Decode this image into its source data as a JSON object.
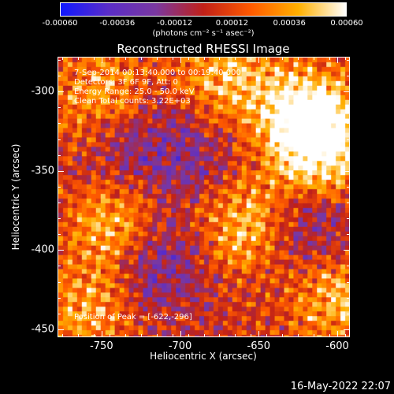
{
  "colorbar": {
    "tick_labels": [
      "-0.00060",
      "-0.00036",
      "-0.00012",
      "0.00012",
      "0.00036",
      "0.00060"
    ],
    "units_label": "(photons cm⁻² s⁻¹ asec⁻²)",
    "range": [
      -0.0006,
      0.0006
    ]
  },
  "annotations": {
    "time": "7-Sep-2014 00:13:40.000 to 00:19:40.000",
    "detectors": "Detectors: 3F 6F 9F, Att: 0",
    "energy": "Energy Range: 25.0 - 50.0 keV",
    "clean": "Clean    Total counts: 3.22E+03",
    "peak": "Position of Peak = [-622,-296]"
  },
  "footer": {
    "date": "16-May-2022 22:07"
  },
  "chart_data": {
    "type": "heatmap",
    "title": "Reconstructed RHESSI Image",
    "xlabel": "Heliocentric X (arcsec)",
    "ylabel": "Heliocentric Y (arcsec)",
    "xlim": [
      -778,
      -592
    ],
    "ylim": [
      -455,
      -278
    ],
    "x_ticks": [
      -750,
      -700,
      -650,
      -600
    ],
    "x_tick_labels": [
      "-750",
      "-700",
      "-650",
      "-600"
    ],
    "y_ticks": [
      -450,
      -400,
      -350,
      -300
    ],
    "y_tick_labels": [
      "-450",
      "-400",
      "-350",
      "-300"
    ],
    "colormap": [
      "#1018ff",
      "#5a2dc8",
      "#7a38a0",
      "#c02018",
      "#ff5a00",
      "#ffb000",
      "#ffffff"
    ],
    "peak_position": [
      -622,
      -296
    ],
    "bright_regions": [
      {
        "x": -620,
        "y": -315,
        "level": 0.95
      },
      {
        "x": -610,
        "y": -335,
        "level": 0.85
      },
      {
        "x": -750,
        "y": -305,
        "level": 0.7
      },
      {
        "x": -740,
        "y": -385,
        "level": 0.75
      },
      {
        "x": -660,
        "y": -385,
        "level": 0.75
      },
      {
        "x": -670,
        "y": -290,
        "level": 0.65
      },
      {
        "x": -600,
        "y": -430,
        "level": 0.7
      },
      {
        "x": -760,
        "y": -440,
        "level": 0.55
      }
    ],
    "dim_regions": [
      {
        "x": -715,
        "y": -405,
        "level": -0.6
      },
      {
        "x": -735,
        "y": -330,
        "level": -0.5
      },
      {
        "x": -620,
        "y": -390,
        "level": -0.45
      },
      {
        "x": -690,
        "y": -345,
        "level": -0.35
      }
    ]
  }
}
